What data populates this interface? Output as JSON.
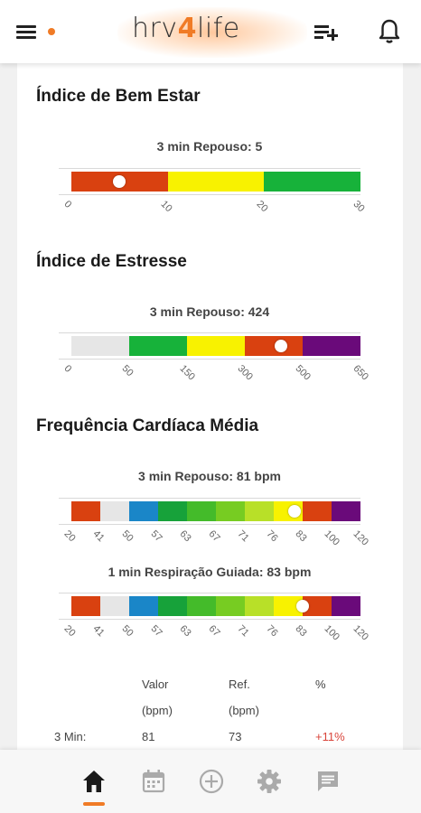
{
  "header": {
    "logo_text_a": "hrv",
    "logo_text_four": "4",
    "logo_text_b": "life",
    "icons": [
      "menu-icon",
      "playlist-add-icon",
      "bell-icon"
    ],
    "accent_color": "#f07b26"
  },
  "wellbeing": {
    "title": "Índice de Bem Estar",
    "caption": "3 min Repouso: 5",
    "value": 5,
    "ticks": [
      "0",
      "10",
      "20",
      "30"
    ],
    "segments": [
      {
        "color": "#d94110",
        "from": 0,
        "to": 10
      },
      {
        "color": "#f8f200",
        "from": 10,
        "to": 20
      },
      {
        "color": "#17b23a",
        "from": 20,
        "to": 30
      }
    ]
  },
  "stress": {
    "title": "Índice de Estresse",
    "caption": "3 min Repouso: 424",
    "value": 424,
    "ticks": [
      "0",
      "50",
      "150",
      "300",
      "500",
      "650"
    ],
    "segments": [
      {
        "color": "#e6e6e6",
        "from": 0,
        "to": 50
      },
      {
        "color": "#17b23a",
        "from": 50,
        "to": 150
      },
      {
        "color": "#f8f200",
        "from": 150,
        "to": 300
      },
      {
        "color": "#d94110",
        "from": 300,
        "to": 500
      },
      {
        "color": "#6a0a7a",
        "from": 500,
        "to": 650
      }
    ]
  },
  "heart_rate": {
    "title": "Frequência Cardíaca Média",
    "caption_rest": "3 min Repouso: 81 bpm",
    "value_rest": 81,
    "caption_guided": "1 min Respiração Guiada: 83 bpm",
    "value_guided": 83,
    "ticks": [
      "20",
      "41",
      "50",
      "57",
      "63",
      "67",
      "71",
      "76",
      "83",
      "100",
      "120"
    ],
    "segments": [
      {
        "color": "#d94110",
        "from": 20,
        "to": 41
      },
      {
        "color": "#e6e6e6",
        "from": 41,
        "to": 50
      },
      {
        "color": "#1a86c8",
        "from": 50,
        "to": 57
      },
      {
        "color": "#17a23a",
        "from": 57,
        "to": 63
      },
      {
        "color": "#44bb2a",
        "from": 63,
        "to": 67
      },
      {
        "color": "#77cc22",
        "from": 67,
        "to": 71
      },
      {
        "color": "#b8e028",
        "from": 71,
        "to": 76
      },
      {
        "color": "#f8f200",
        "from": 76,
        "to": 83
      },
      {
        "color": "#d94110",
        "from": 83,
        "to": 100
      },
      {
        "color": "#6a0a7a",
        "from": 100,
        "to": 120
      }
    ]
  },
  "table": {
    "col_value": "Valor",
    "col_value_unit": "(bpm)",
    "col_ref": "Ref.",
    "col_ref_unit": "(bpm)",
    "col_pct": "%",
    "row_label": "3 Min:",
    "row_value": "81",
    "row_ref": "73",
    "row_pct": "+11%"
  },
  "bottom_nav": {
    "items": [
      "home-icon",
      "calendar-icon",
      "add-circle-icon",
      "settings-icon",
      "chat-icon"
    ],
    "active": "home-icon"
  }
}
